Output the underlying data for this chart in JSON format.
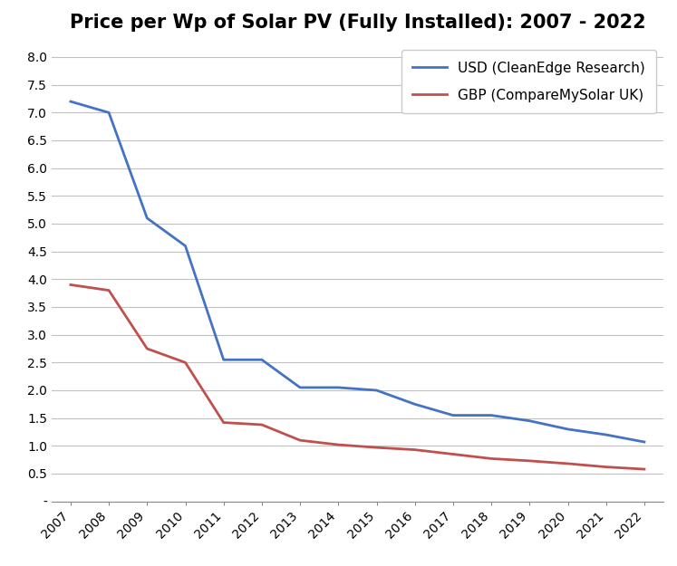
{
  "title": "Price per Wp of Solar PV (Fully Installed): 2007 - 2022",
  "years": [
    2007,
    2008,
    2009,
    2010,
    2011,
    2012,
    2013,
    2014,
    2015,
    2016,
    2017,
    2018,
    2019,
    2020,
    2021,
    2022
  ],
  "usd_values": [
    7.2,
    7.0,
    5.1,
    4.6,
    2.55,
    2.55,
    2.05,
    2.05,
    2.0,
    1.75,
    1.55,
    1.55,
    1.45,
    1.3,
    1.2,
    1.07
  ],
  "gbp_values": [
    3.9,
    3.8,
    2.75,
    2.5,
    1.42,
    1.38,
    1.1,
    1.02,
    0.97,
    0.93,
    0.85,
    0.77,
    0.73,
    0.68,
    0.62,
    0.58
  ],
  "usd_color": "#4472C4",
  "gbp_color": "#C0504D",
  "usd_label": "USD (CleanEdge Research)",
  "gbp_label": "GBP (CompareMySolar UK)",
  "ylim": [
    0,
    8.25
  ],
  "yticks": [
    0,
    0.5,
    1.0,
    1.5,
    2.0,
    2.5,
    3.0,
    3.5,
    4.0,
    4.5,
    5.0,
    5.5,
    6.0,
    6.5,
    7.0,
    7.5,
    8.0
  ],
  "ytick_labels": [
    "-",
    "0.5",
    "1.0",
    "1.5",
    "2.0",
    "2.5",
    "3.0",
    "3.5",
    "4.0",
    "4.5",
    "5.0",
    "5.5",
    "6.0",
    "6.5",
    "7.0",
    "7.5",
    "8.0"
  ],
  "background_color": "#FFFFFF",
  "grid_color": "#C0C0C0",
  "line_width": 2.0,
  "title_fontsize": 15,
  "tick_fontsize": 10,
  "legend_fontsize": 11
}
